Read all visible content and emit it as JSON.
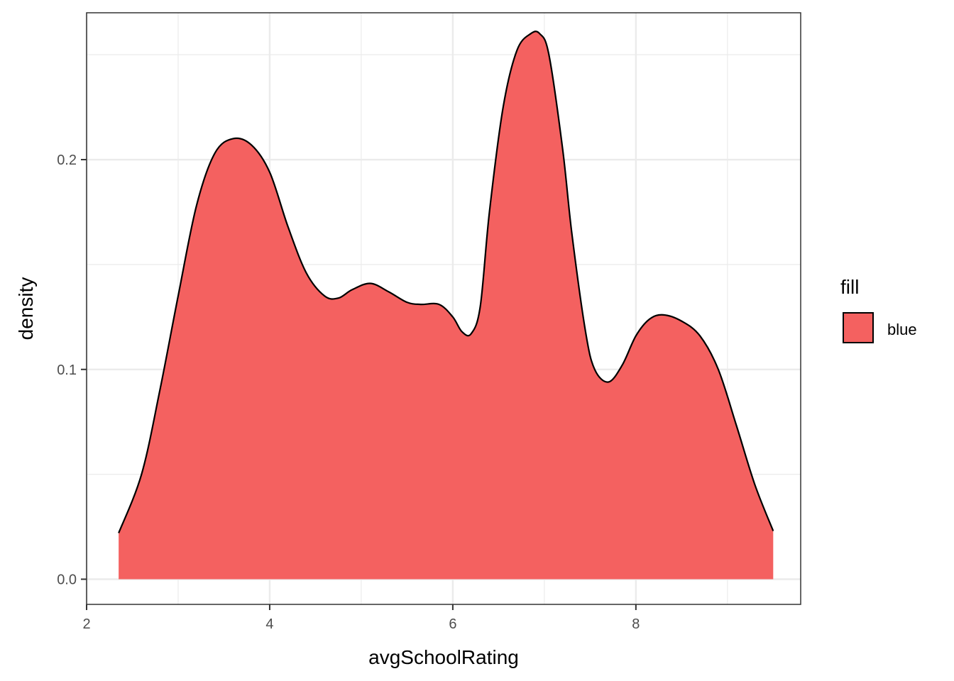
{
  "chart_data": {
    "type": "area",
    "xlabel": "avgSchoolRating",
    "ylabel": "density",
    "xlim": [
      2,
      9.8
    ],
    "ylim": [
      -0.012,
      0.27
    ],
    "x_ticks": [
      2,
      4,
      6,
      8
    ],
    "x_tick_labels": [
      "2",
      "4",
      "6",
      "8"
    ],
    "y_ticks": [
      0.0,
      0.1,
      0.2
    ],
    "y_tick_labels": [
      "0.0",
      "0.1",
      "0.2"
    ],
    "grid": true,
    "legend": {
      "title": "fill",
      "position": "right",
      "entries": [
        "blue"
      ]
    },
    "colors": {
      "fill": "#F46160",
      "outline": "#000000",
      "panel_border": "#333333",
      "grid": "#EBEBEB"
    },
    "series": [
      {
        "x": [
          2.35,
          2.6,
          2.8,
          3.0,
          3.2,
          3.4,
          3.6,
          3.8,
          4.0,
          4.2,
          4.4,
          4.6,
          4.75,
          4.9,
          5.1,
          5.3,
          5.5,
          5.65,
          5.85,
          6.0,
          6.1,
          6.2,
          6.3,
          6.4,
          6.55,
          6.7,
          6.85,
          6.95,
          7.05,
          7.2,
          7.3,
          7.45,
          7.55,
          7.7,
          7.85,
          8.0,
          8.15,
          8.3,
          8.5,
          8.7,
          8.9,
          9.1,
          9.3,
          9.5
        ],
        "y": [
          0.022,
          0.05,
          0.09,
          0.135,
          0.178,
          0.203,
          0.21,
          0.207,
          0.194,
          0.168,
          0.146,
          0.135,
          0.134,
          0.138,
          0.141,
          0.137,
          0.132,
          0.131,
          0.131,
          0.125,
          0.118,
          0.117,
          0.13,
          0.175,
          0.225,
          0.252,
          0.26,
          0.26,
          0.25,
          0.205,
          0.165,
          0.118,
          0.1,
          0.094,
          0.102,
          0.116,
          0.124,
          0.126,
          0.123,
          0.116,
          0.1,
          0.073,
          0.045,
          0.023
        ]
      }
    ]
  }
}
